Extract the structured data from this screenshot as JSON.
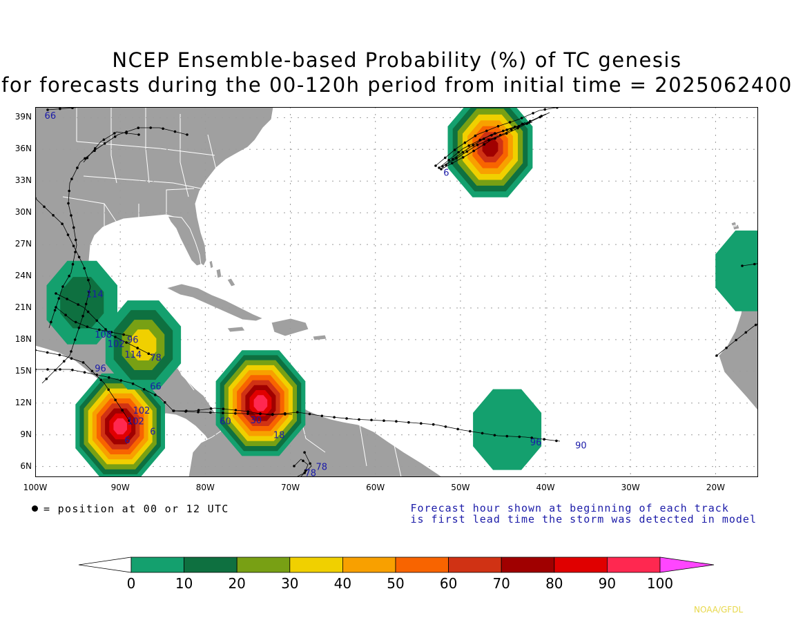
{
  "title_line1": "NCEP Ensemble-based Probability (%) of TC genesis",
  "title_line2": "for forecasts during the 00-120h period from initial time = 2025062400",
  "map": {
    "lon_range": [
      -100,
      -15
    ],
    "lat_range": [
      5,
      40
    ],
    "lat_ticks": [
      39,
      36,
      33,
      30,
      27,
      24,
      21,
      18,
      15,
      12,
      9,
      6
    ],
    "lat_labels": [
      "39N",
      "36N",
      "33N",
      "30N",
      "27N",
      "24N",
      "21N",
      "18N",
      "15N",
      "12N",
      "9N",
      "6N"
    ],
    "lon_ticks": [
      -100,
      -90,
      -80,
      -70,
      -60,
      -50,
      -40,
      -30,
      -20
    ],
    "lon_labels": [
      "100W",
      "90W",
      "80W",
      "70W",
      "60W",
      "50W",
      "40W",
      "30W",
      "20W"
    ],
    "land_color": "#a0a0a0",
    "ocean_color": "#ffffff"
  },
  "legend": {
    "position_note": "= position at 00 or 12 UTC",
    "forecast_note_line1": "Forecast hour shown at beginning of each track",
    "forecast_note_line2": "is first lead time the storm was detected in model"
  },
  "colorbar": {
    "levels": [
      0,
      10,
      20,
      30,
      40,
      50,
      60,
      70,
      80,
      90,
      100
    ],
    "labels": [
      "0",
      "10",
      "20",
      "30",
      "40",
      "50",
      "60",
      "70",
      "80",
      "90",
      "100"
    ],
    "colors": [
      "#ffffff",
      "#14a06e",
      "#0e7040",
      "#78a014",
      "#f0d000",
      "#f8a000",
      "#f86400",
      "#d03214",
      "#a00000",
      "#e00000",
      "#ff2850",
      "#ff46ff"
    ]
  },
  "genesis_areas": [
    {
      "name": "mid-atlantic",
      "lon": -46.5,
      "lat": 36.2,
      "peak_prob": 75
    },
    {
      "name": "gulf-campeche",
      "lon": -90.0,
      "lat": 9.8,
      "peak_prob": 100
    },
    {
      "name": "sw-caribbean",
      "lon": -73.5,
      "lat": 12.0,
      "peak_prob": 100
    },
    {
      "name": "western-gulf",
      "lon": -94.5,
      "lat": 21.5,
      "peak_prob": 15
    },
    {
      "name": "honduras-gulf",
      "lon": -87.3,
      "lat": 17.5,
      "peak_prob": 35
    },
    {
      "name": "tropical-atlantic",
      "lon": -44.5,
      "lat": 9.5,
      "peak_prob": 10
    },
    {
      "name": "west-africa-coast",
      "lon": -16.0,
      "lat": 24.5,
      "peak_prob": 10
    }
  ],
  "track_labels": [
    {
      "text": "66",
      "lon": -98.9,
      "lat": 38.9
    },
    {
      "text": "6",
      "lon": -52.0,
      "lat": 33.5
    },
    {
      "text": "114",
      "lon": -94.0,
      "lat": 22.0
    },
    {
      "text": "108",
      "lon": -93.0,
      "lat": 18.2
    },
    {
      "text": "102",
      "lon": -91.5,
      "lat": 17.3
    },
    {
      "text": "96",
      "lon": -89.2,
      "lat": 17.7
    },
    {
      "text": "114",
      "lon": -89.5,
      "lat": 16.3
    },
    {
      "text": "96",
      "lon": -93.0,
      "lat": 15.0
    },
    {
      "text": "78",
      "lon": -86.5,
      "lat": 16.0
    },
    {
      "text": "66",
      "lon": -86.5,
      "lat": 13.3
    },
    {
      "text": "102",
      "lon": -88.5,
      "lat": 11.0
    },
    {
      "text": "102",
      "lon": -89.2,
      "lat": 10.0
    },
    {
      "text": "6",
      "lon": -89.5,
      "lat": 8.2
    },
    {
      "text": "6",
      "lon": -86.5,
      "lat": 9.0
    },
    {
      "text": "60",
      "lon": -78.3,
      "lat": 10.0
    },
    {
      "text": "30",
      "lon": -74.7,
      "lat": 10.1
    },
    {
      "text": "18",
      "lon": -72.0,
      "lat": 8.7
    },
    {
      "text": "96",
      "lon": -41.8,
      "lat": 8.0
    },
    {
      "text": "90",
      "lon": -36.5,
      "lat": 7.7
    },
    {
      "text": "78",
      "lon": -68.3,
      "lat": 5.1
    },
    {
      "text": "78",
      "lon": -67.0,
      "lat": 5.7
    }
  ],
  "credit": "NOAA/GFDL"
}
